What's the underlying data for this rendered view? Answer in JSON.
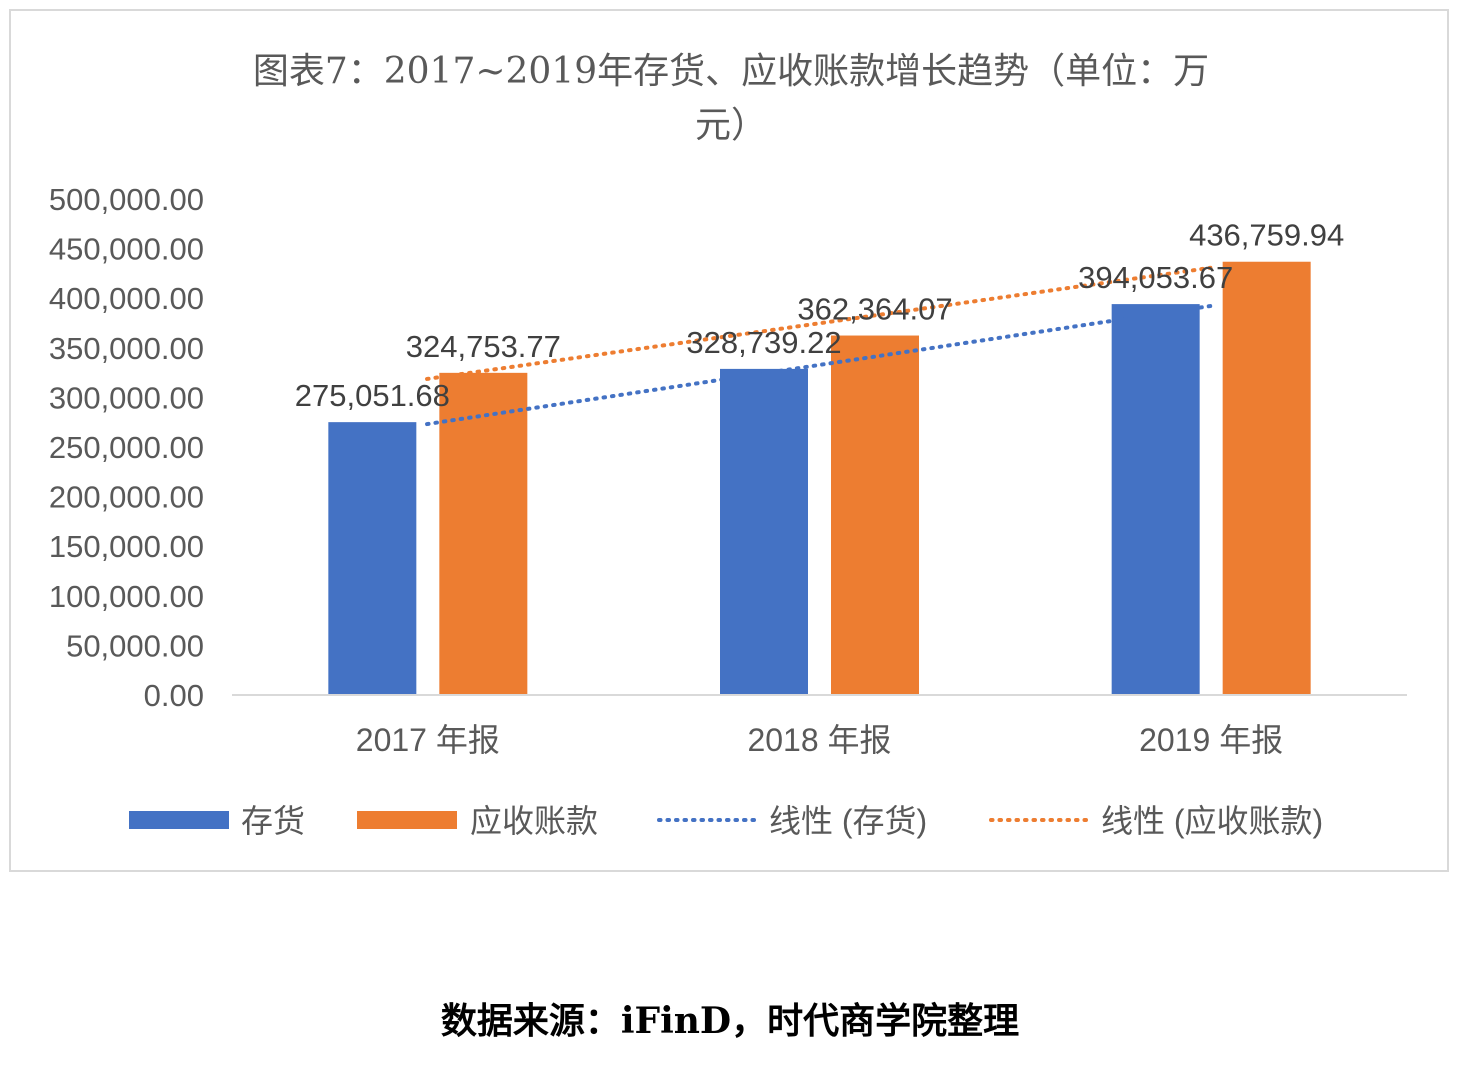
{
  "chart_data": {
    "type": "bar",
    "title": "图表7：2017~2019年存货、应收账款增长趋势（单位：万元）",
    "title_lines": [
      "图表7：2017~2019年存货、应收账款增长趋势（单位：万",
      "元）"
    ],
    "categories": [
      "2017 年报",
      "2018 年报",
      "2019 年报"
    ],
    "series": [
      {
        "name": "存货",
        "values": [
          275051.68,
          328739.22,
          394053.67
        ],
        "labels": [
          "275,051.68",
          "328,739.22",
          "394,053.67"
        ],
        "color": "#4472C4"
      },
      {
        "name": "应收账款",
        "values": [
          324753.77,
          362364.07,
          436759.94
        ],
        "labels": [
          "324,753.77",
          "362,364.07",
          "436,759.94"
        ],
        "color": "#ED7D31"
      }
    ],
    "trendlines": [
      {
        "name": "线性 (存货)",
        "of": "存货",
        "type": "linear",
        "style": "dotted",
        "color": "#4472C4"
      },
      {
        "name": "线性 (应收账款)",
        "of": "应收账款",
        "type": "linear",
        "style": "dotted",
        "color": "#ED7D31"
      }
    ],
    "ylim": [
      0,
      500000
    ],
    "yticks": [
      0,
      50000,
      100000,
      150000,
      200000,
      250000,
      300000,
      350000,
      400000,
      450000,
      500000
    ],
    "ytick_labels": [
      "0.00",
      "50,000.00",
      "100,000.00",
      "150,000.00",
      "200,000.00",
      "250,000.00",
      "300,000.00",
      "350,000.00",
      "400,000.00",
      "450,000.00",
      "500,000.00"
    ],
    "xlabel": "",
    "ylabel": "",
    "grid": false,
    "legend": {
      "position": "bottom",
      "entries": [
        "存货",
        "应收账款",
        "线性 (存货)",
        "线性 (应收账款)"
      ]
    }
  },
  "source_note": "数据来源：iFinD，时代商学院整理"
}
